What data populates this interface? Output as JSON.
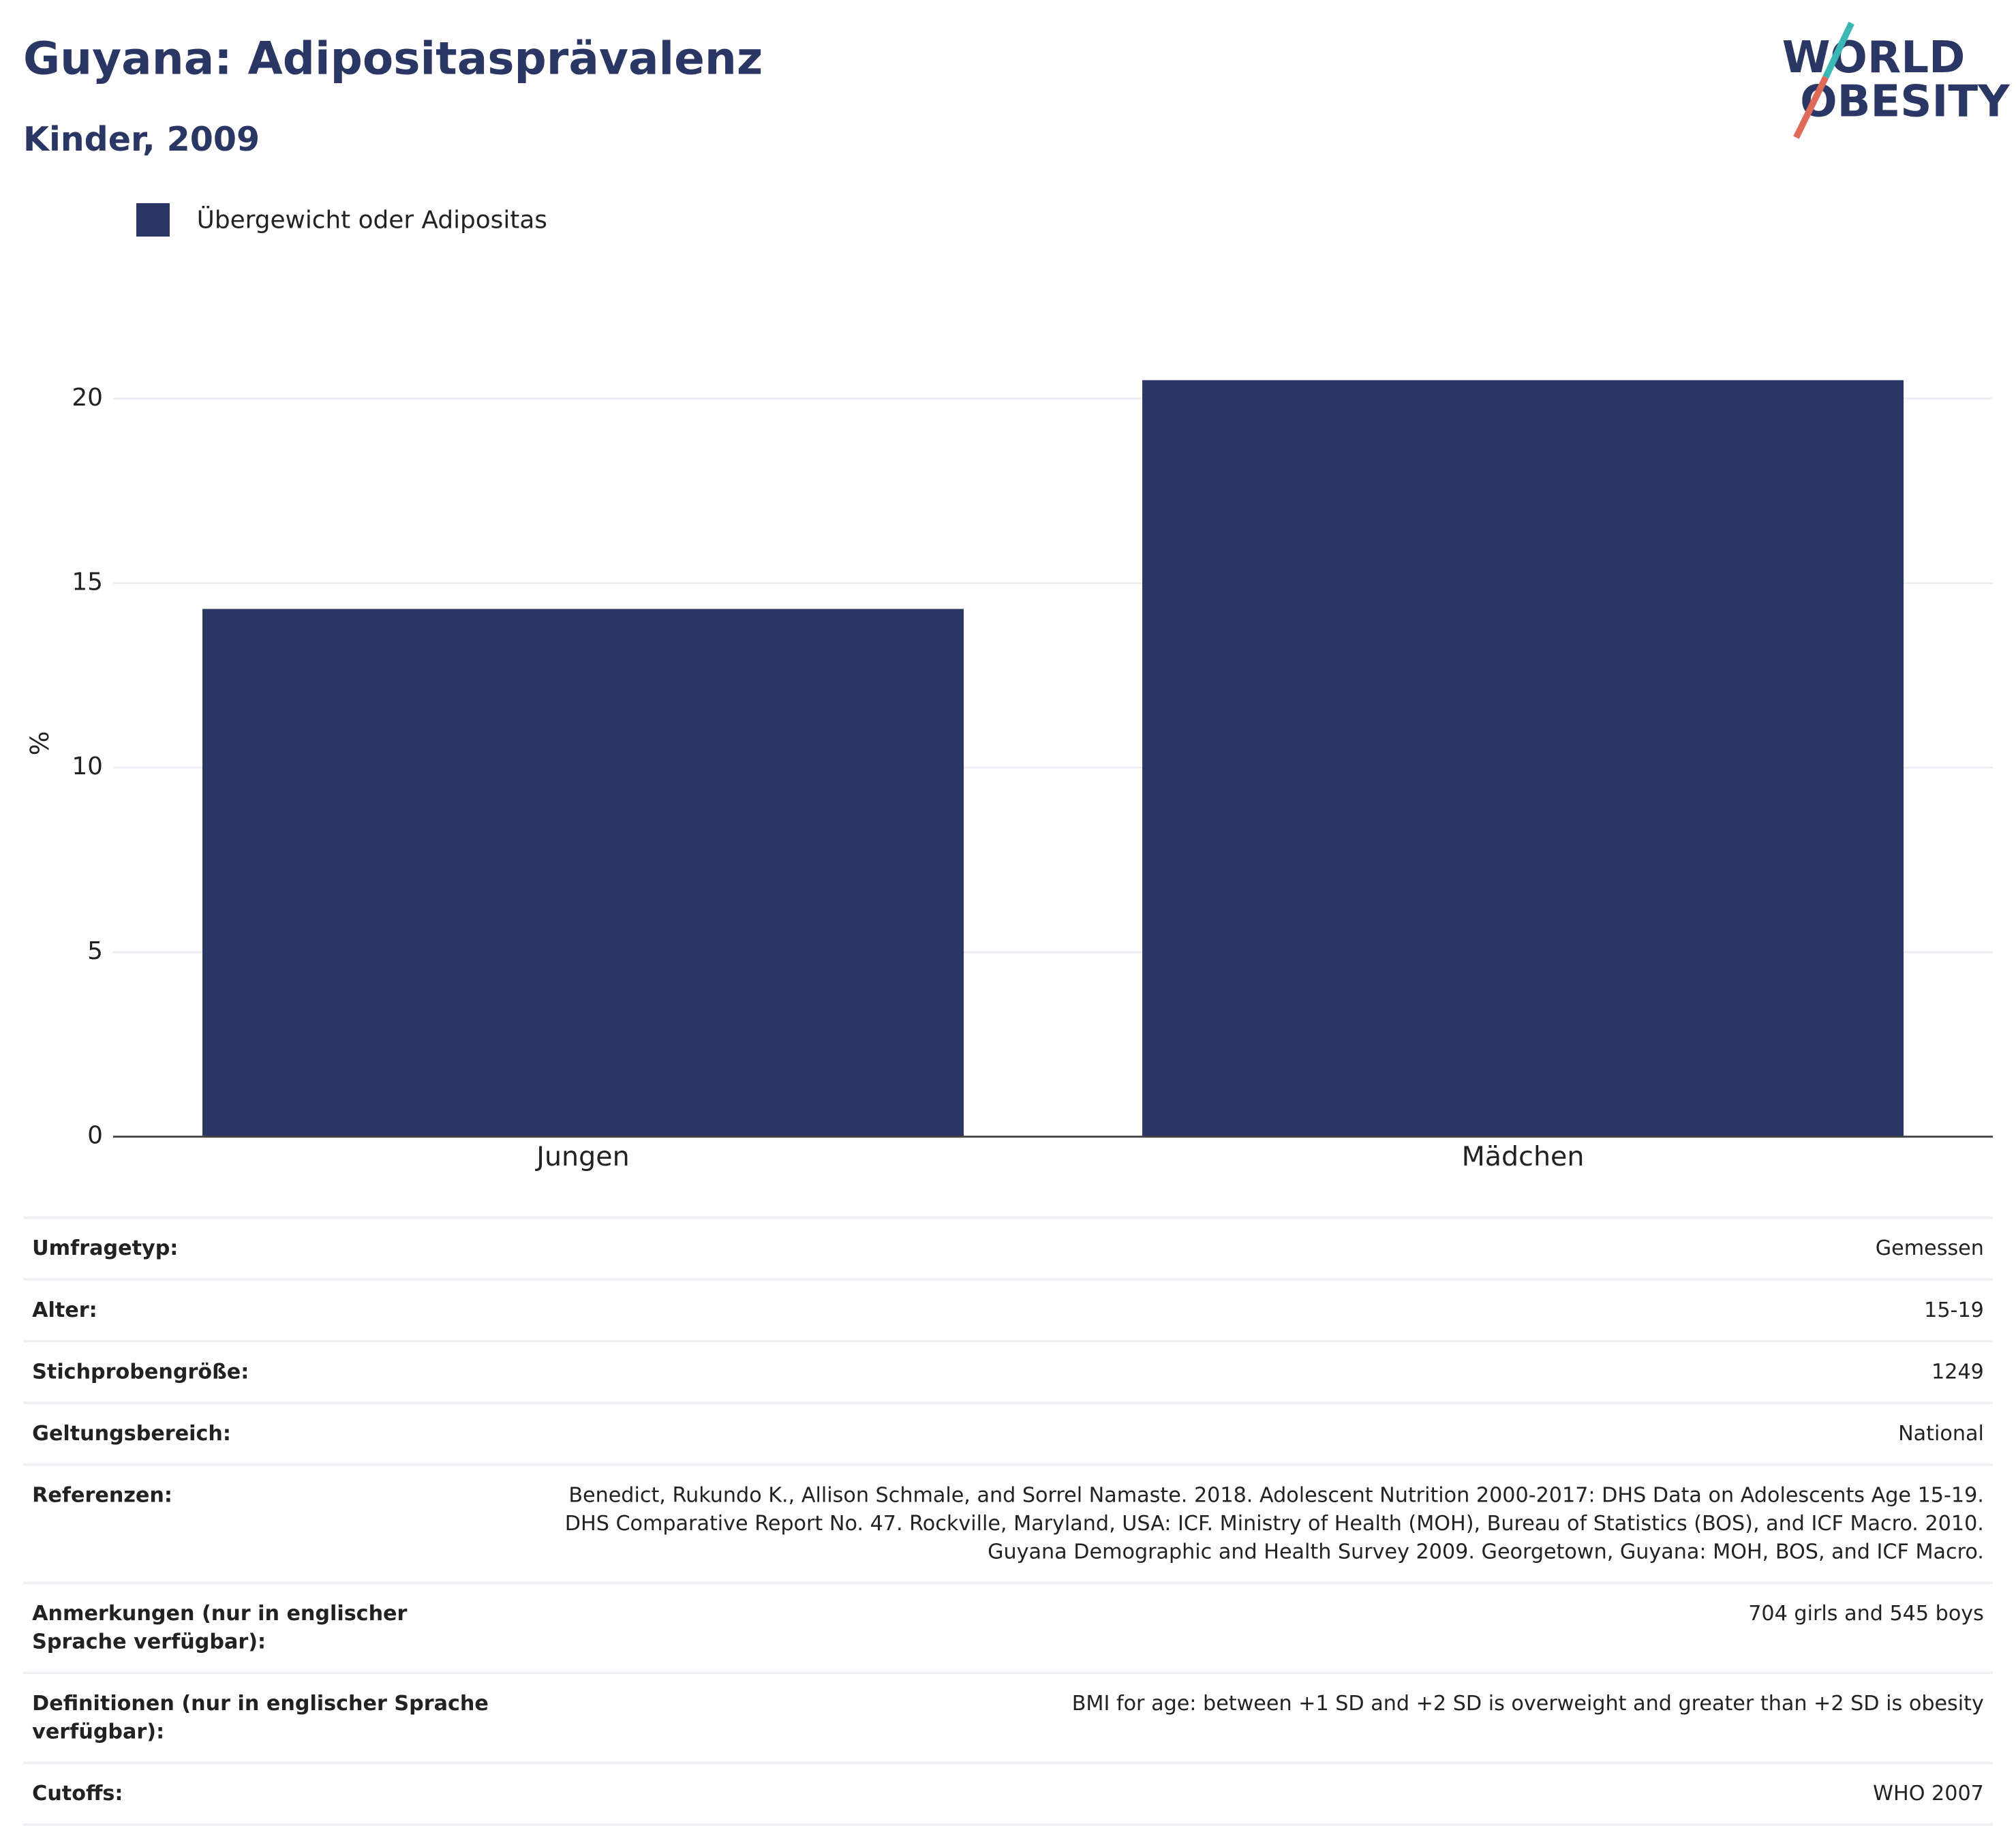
{
  "chart_data": {
    "type": "bar",
    "title": "Guyana: Adipositasprävalenz",
    "subtitle": "Kinder, 2009",
    "y_label": "%",
    "categories": [
      "Jungen",
      "Mädchen"
    ],
    "series": [
      {
        "name": "Übergewicht oder Adipositas",
        "color": "#2a3663",
        "values": [
          14.3,
          20.5
        ]
      }
    ],
    "ylim": [
      0,
      21.6
    ],
    "yticks": [
      0,
      5,
      10,
      15,
      20
    ],
    "grid": true,
    "legend": "top-left"
  },
  "logo": {
    "line1": "WORLD",
    "line2": "OBESITY"
  },
  "table": {
    "rows": [
      [
        "Umfragetyp:",
        "Gemessen"
      ],
      [
        "Alter:",
        "15-19"
      ],
      [
        "Stichprobengröße:",
        "1249"
      ],
      [
        "Geltungsbereich:",
        "National"
      ],
      [
        "Referenzen:",
        "Benedict, Rukundo K., Allison Schmale, and Sorrel Namaste. 2018. Adolescent Nutrition 2000-2017: DHS Data on Adolescents Age 15-19. DHS Comparative Report No. 47. Rockville, Maryland, USA: ICF. Ministry of Health (MOH), Bureau of Statistics (BOS), and ICF Macro. 2010. Guyana Demographic and Health Survey 2009. Georgetown, Guyana: MOH, BOS, and ICF Macro."
      ],
      [
        "Anmerkungen (nur in englischer Sprache verfügbar):",
        "704 girls and 545 boys"
      ],
      [
        "Definitionen (nur in englischer Sprache verfügbar):",
        "BMI for age: between +1 SD and +2 SD is overweight and greater than +2 SD is obesity"
      ],
      [
        "Cutoffs:",
        "WHO 2007"
      ]
    ]
  }
}
